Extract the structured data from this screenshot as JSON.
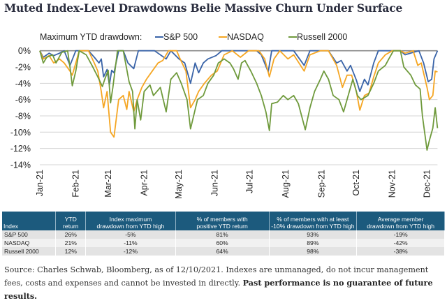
{
  "title": "Muted Index-Level Drawdowns Belie Massive Churn Under Surface",
  "chart_data": {
    "type": "line",
    "legend_title": "Maximum YTD drawdown:",
    "legend_position": "top",
    "ylim": [
      -14,
      0
    ],
    "yticks": [
      "0%",
      "-2%",
      "-4%",
      "-6%",
      "-8%",
      "-10%",
      "-12%",
      "-14%"
    ],
    "ytick_values": [
      0,
      -2,
      -4,
      -6,
      -8,
      -10,
      -12,
      -14
    ],
    "xlim": [
      "2021-01-01",
      "2021-12-10"
    ],
    "xticks": [
      "Jan-21",
      "Feb-21",
      "Mar-21",
      "Apr-21",
      "May-21",
      "Jun-21",
      "Jul-21",
      "Aug-21",
      "Sep-21",
      "Oct-21",
      "Nov-21",
      "Dec-21"
    ],
    "xtick_dates": [
      "2021-01-01",
      "2021-02-01",
      "2021-03-01",
      "2021-04-01",
      "2021-05-01",
      "2021-06-01",
      "2021-07-01",
      "2021-08-01",
      "2021-09-01",
      "2021-10-01",
      "2021-11-01",
      "2021-12-01"
    ],
    "grid": "horizontal",
    "series": [
      {
        "name": "S&P 500",
        "color": "#3a64a8",
        "points": [
          [
            "2021-01-01",
            0
          ],
          [
            "2021-01-04",
            -0.8
          ],
          [
            "2021-01-09",
            -0.3
          ],
          [
            "2021-01-13",
            -0.6
          ],
          [
            "2021-01-18",
            -0.3
          ],
          [
            "2021-01-22",
            0
          ],
          [
            "2021-01-27",
            -1.8
          ],
          [
            "2021-02-01",
            0
          ],
          [
            "2021-02-05",
            0
          ],
          [
            "2021-02-12",
            0
          ],
          [
            "2021-02-17",
            -0.8
          ],
          [
            "2021-02-21",
            -1.5
          ],
          [
            "2021-02-23",
            -1.0
          ],
          [
            "2021-02-25",
            -3.2
          ],
          [
            "2021-02-28",
            -2.3
          ],
          [
            "2021-03-02",
            -4.2
          ],
          [
            "2021-03-04",
            -2.4
          ],
          [
            "2021-03-06",
            -2.7
          ],
          [
            "2021-03-10",
            0
          ],
          [
            "2021-03-14",
            0
          ],
          [
            "2021-03-18",
            -1.5
          ],
          [
            "2021-03-23",
            -2.2
          ],
          [
            "2021-03-27",
            0
          ],
          [
            "2021-04-03",
            0
          ],
          [
            "2021-04-10",
            0
          ],
          [
            "2021-04-20",
            -1.0
          ],
          [
            "2021-04-24",
            0
          ],
          [
            "2021-05-01",
            -1.0
          ],
          [
            "2021-05-06",
            -1.5
          ],
          [
            "2021-05-11",
            -4.0
          ],
          [
            "2021-05-15",
            -1.5
          ],
          [
            "2021-05-18",
            -2.7
          ],
          [
            "2021-05-22",
            -1.5
          ],
          [
            "2021-05-26",
            -1.0
          ],
          [
            "2021-06-02",
            -0.6
          ],
          [
            "2021-06-07",
            0
          ],
          [
            "2021-06-14",
            0
          ],
          [
            "2021-06-23",
            0
          ],
          [
            "2021-06-30",
            0
          ],
          [
            "2021-07-07",
            0
          ],
          [
            "2021-07-11",
            -0.5
          ],
          [
            "2021-07-17",
            -2.6
          ],
          [
            "2021-07-20",
            0
          ],
          [
            "2021-07-30",
            0
          ],
          [
            "2021-08-08",
            0
          ],
          [
            "2021-08-17",
            -1.8
          ],
          [
            "2021-08-22",
            0
          ],
          [
            "2021-08-31",
            0
          ],
          [
            "2021-09-07",
            0
          ],
          [
            "2021-09-14",
            -1.5
          ],
          [
            "2021-09-18",
            -1.2
          ],
          [
            "2021-09-23",
            -2.5
          ],
          [
            "2021-09-26",
            -1.8
          ],
          [
            "2021-10-01",
            -3.6
          ],
          [
            "2021-10-04",
            -5.0
          ],
          [
            "2021-10-08",
            -3.5
          ],
          [
            "2021-10-11",
            -4.2
          ],
          [
            "2021-10-16",
            -1.5
          ],
          [
            "2021-10-20",
            0
          ],
          [
            "2021-10-29",
            0
          ],
          [
            "2021-11-08",
            0
          ],
          [
            "2021-11-12",
            -0.5
          ],
          [
            "2021-11-19",
            -0.2
          ],
          [
            "2021-11-24",
            0
          ],
          [
            "2021-11-28",
            -1.5
          ],
          [
            "2021-12-02",
            -3.8
          ],
          [
            "2021-12-05",
            -3.5
          ],
          [
            "2021-12-07",
            -1.0
          ],
          [
            "2021-12-10",
            0
          ]
        ]
      },
      {
        "name": "NASDAQ",
        "color": "#f5a623",
        "points": [
          [
            "2021-01-01",
            0
          ],
          [
            "2021-01-04",
            -1.0
          ],
          [
            "2021-01-09",
            -0.6
          ],
          [
            "2021-01-13",
            -1.5
          ],
          [
            "2021-01-18",
            -1.0
          ],
          [
            "2021-01-22",
            -1.5
          ],
          [
            "2021-01-27",
            -2.5
          ],
          [
            "2021-01-29",
            -3.0
          ],
          [
            "2021-02-01",
            -1.5
          ],
          [
            "2021-02-04",
            0
          ],
          [
            "2021-02-12",
            0
          ],
          [
            "2021-02-17",
            -1.5
          ],
          [
            "2021-02-20",
            -2.5
          ],
          [
            "2021-02-23",
            -5.0
          ],
          [
            "2021-02-25",
            -7.0
          ],
          [
            "2021-02-28",
            -5.0
          ],
          [
            "2021-03-03",
            -10.0
          ],
          [
            "2021-03-06",
            -10.6
          ],
          [
            "2021-03-10",
            -6.0
          ],
          [
            "2021-03-14",
            -5.5
          ],
          [
            "2021-03-17",
            -7.2
          ],
          [
            "2021-03-19",
            -5.0
          ],
          [
            "2021-03-23",
            -7.5
          ],
          [
            "2021-03-26",
            -6.0
          ],
          [
            "2021-03-30",
            -4.5
          ],
          [
            "2021-04-03",
            -3.5
          ],
          [
            "2021-04-08",
            -2.5
          ],
          [
            "2021-04-13",
            -1.5
          ],
          [
            "2021-04-17",
            -1.2
          ],
          [
            "2021-04-22",
            0
          ],
          [
            "2021-04-29",
            0
          ],
          [
            "2021-05-02",
            -1.0
          ],
          [
            "2021-05-07",
            -2.5
          ],
          [
            "2021-05-11",
            -7.0
          ],
          [
            "2021-05-15",
            -6.0
          ],
          [
            "2021-05-18",
            -5.0
          ],
          [
            "2021-05-23",
            -4.0
          ],
          [
            "2021-05-29",
            -3.0
          ],
          [
            "2021-06-03",
            -2.5
          ],
          [
            "2021-06-09",
            -0.5
          ],
          [
            "2021-06-16",
            0
          ],
          [
            "2021-06-23",
            -0.8
          ],
          [
            "2021-06-30",
            0
          ],
          [
            "2021-07-09",
            0
          ],
          [
            "2021-07-14",
            -1.0
          ],
          [
            "2021-07-18",
            -3.2
          ],
          [
            "2021-07-22",
            -1.0
          ],
          [
            "2021-07-27",
            0
          ],
          [
            "2021-08-03",
            -1.0
          ],
          [
            "2021-08-08",
            -0.5
          ],
          [
            "2021-08-17",
            -2.5
          ],
          [
            "2021-08-22",
            -0.5
          ],
          [
            "2021-08-31",
            0
          ],
          [
            "2021-09-07",
            0
          ],
          [
            "2021-09-14",
            -1.8
          ],
          [
            "2021-09-19",
            -4.5
          ],
          [
            "2021-09-23",
            -3.0
          ],
          [
            "2021-09-27",
            -3.0
          ],
          [
            "2021-10-01",
            -5.0
          ],
          [
            "2021-10-04",
            -7.3
          ],
          [
            "2021-10-08",
            -5.5
          ],
          [
            "2021-10-12",
            -5.2
          ],
          [
            "2021-10-16",
            -3.2
          ],
          [
            "2021-10-20",
            -1.5
          ],
          [
            "2021-10-26",
            -0.5
          ],
          [
            "2021-11-01",
            0
          ],
          [
            "2021-11-08",
            0
          ],
          [
            "2021-11-12",
            -0.3
          ],
          [
            "2021-11-19",
            0
          ],
          [
            "2021-11-23",
            -1.8
          ],
          [
            "2021-11-26",
            -1.5
          ],
          [
            "2021-12-01",
            -4.5
          ],
          [
            "2021-12-03",
            -6.0
          ],
          [
            "2021-12-06",
            -5.5
          ],
          [
            "2021-12-08",
            -2.5
          ],
          [
            "2021-12-10",
            -2.6
          ]
        ]
      },
      {
        "name": "Russell 2000",
        "color": "#6f9a3c",
        "points": [
          [
            "2021-01-01",
            0
          ],
          [
            "2021-01-04",
            -1.5
          ],
          [
            "2021-01-07",
            -0.8
          ],
          [
            "2021-01-12",
            -0.5
          ],
          [
            "2021-01-15",
            -1.5
          ],
          [
            "2021-01-20",
            -0.2
          ],
          [
            "2021-01-25",
            0
          ],
          [
            "2021-01-27",
            -2.0
          ],
          [
            "2021-01-29",
            -4.3
          ],
          [
            "2021-02-01",
            -2.5
          ],
          [
            "2021-02-04",
            0
          ],
          [
            "2021-02-10",
            -0.5
          ],
          [
            "2021-02-15",
            -1.8
          ],
          [
            "2021-02-20",
            -3.2
          ],
          [
            "2021-02-24",
            -4.4
          ],
          [
            "2021-02-26",
            -3.5
          ],
          [
            "2021-03-01",
            -2.4
          ],
          [
            "2021-03-03",
            -6.4
          ],
          [
            "2021-03-05",
            -4.5
          ],
          [
            "2021-03-09",
            0
          ],
          [
            "2021-03-14",
            0
          ],
          [
            "2021-03-16",
            -1.5
          ],
          [
            "2021-03-19",
            -3.8
          ],
          [
            "2021-03-22",
            -5.0
          ],
          [
            "2021-03-24",
            -9.6
          ],
          [
            "2021-03-26",
            -6.0
          ],
          [
            "2021-03-29",
            -8.5
          ],
          [
            "2021-04-01",
            -5.0
          ],
          [
            "2021-04-06",
            -4.2
          ],
          [
            "2021-04-09",
            -5.5
          ],
          [
            "2021-04-15",
            -4.5
          ],
          [
            "2021-04-20",
            -7.5
          ],
          [
            "2021-04-24",
            -3.5
          ],
          [
            "2021-04-29",
            -2.7
          ],
          [
            "2021-05-03",
            -4.0
          ],
          [
            "2021-05-08",
            -6.0
          ],
          [
            "2021-05-11",
            -9.6
          ],
          [
            "2021-05-17",
            -6.0
          ],
          [
            "2021-05-22",
            -5.5
          ],
          [
            "2021-05-26",
            -4.0
          ],
          [
            "2021-05-31",
            -3.0
          ],
          [
            "2021-06-04",
            -1.5
          ],
          [
            "2021-06-09",
            -1.0
          ],
          [
            "2021-06-14",
            -1.5
          ],
          [
            "2021-06-17",
            -2.2
          ],
          [
            "2021-06-21",
            -3.5
          ],
          [
            "2021-06-24",
            -1.5
          ],
          [
            "2021-06-27",
            -1.2
          ],
          [
            "2021-07-02",
            -2.5
          ],
          [
            "2021-07-07",
            -4.0
          ],
          [
            "2021-07-11",
            -5.5
          ],
          [
            "2021-07-15",
            -7.5
          ],
          [
            "2021-07-18",
            -9.8
          ],
          [
            "2021-07-20",
            -6.5
          ],
          [
            "2021-07-25",
            -6.3
          ],
          [
            "2021-07-30",
            -5.5
          ],
          [
            "2021-08-03",
            -6.0
          ],
          [
            "2021-08-08",
            -5.5
          ],
          [
            "2021-08-12",
            -6.5
          ],
          [
            "2021-08-18",
            -9.7
          ],
          [
            "2021-08-22",
            -7.0
          ],
          [
            "2021-08-26",
            -5.0
          ],
          [
            "2021-08-31",
            -3.5
          ],
          [
            "2021-09-03",
            -2.5
          ],
          [
            "2021-09-07",
            -3.5
          ],
          [
            "2021-09-11",
            -5.5
          ],
          [
            "2021-09-16",
            -6.0
          ],
          [
            "2021-09-20",
            -7.5
          ],
          [
            "2021-09-25",
            -5.0
          ],
          [
            "2021-09-28",
            -3.5
          ],
          [
            "2021-10-02",
            -5.5
          ],
          [
            "2021-10-05",
            -6.0
          ],
          [
            "2021-10-11",
            -5.5
          ],
          [
            "2021-10-16",
            -4.0
          ],
          [
            "2021-10-20",
            -2.5
          ],
          [
            "2021-10-26",
            -1.8
          ],
          [
            "2021-10-29",
            -1.0
          ],
          [
            "2021-11-02",
            0
          ],
          [
            "2021-11-08",
            0
          ],
          [
            "2021-11-11",
            -2.0
          ],
          [
            "2021-11-17",
            -3.0
          ],
          [
            "2021-11-21",
            -4.2
          ],
          [
            "2021-11-25",
            -4.7
          ],
          [
            "2021-11-27",
            -8.0
          ],
          [
            "2021-12-01",
            -12.2
          ],
          [
            "2021-12-03",
            -11.0
          ],
          [
            "2021-12-06",
            -9.5
          ],
          [
            "2021-12-08",
            -7.0
          ],
          [
            "2021-12-10",
            -9.5
          ]
        ]
      }
    ]
  },
  "table": {
    "headers": [
      [
        "Index"
      ],
      [
        "YTD",
        "return"
      ],
      [
        "Index maximum",
        "drawdown from YTD high"
      ],
      [
        "% of members with",
        "positive YTD return"
      ],
      [
        "% of members with at least",
        "-10% drawdown from YTD high"
      ],
      [
        "Average member",
        "drawdown from YTD high"
      ]
    ],
    "header_color": "#1c5a7d",
    "rows": [
      [
        "S&P 500",
        "26%",
        "-5%",
        "81%",
        "93%",
        "-19%"
      ],
      [
        "NASDAQ",
        "21%",
        "-11%",
        "60%",
        "89%",
        "-42%"
      ],
      [
        "Russell 2000",
        "12%",
        "-12%",
        "64%",
        "98%",
        "-38%"
      ]
    ]
  },
  "footer": {
    "source": "Source: Charles Schwab, Bloomberg, as of 12/10/2021. Indexes are unmanaged, do not incur management fees, costs and expenses and cannot be invested in directly.",
    "disclaimer": "Past performance is no guarantee of future results."
  }
}
